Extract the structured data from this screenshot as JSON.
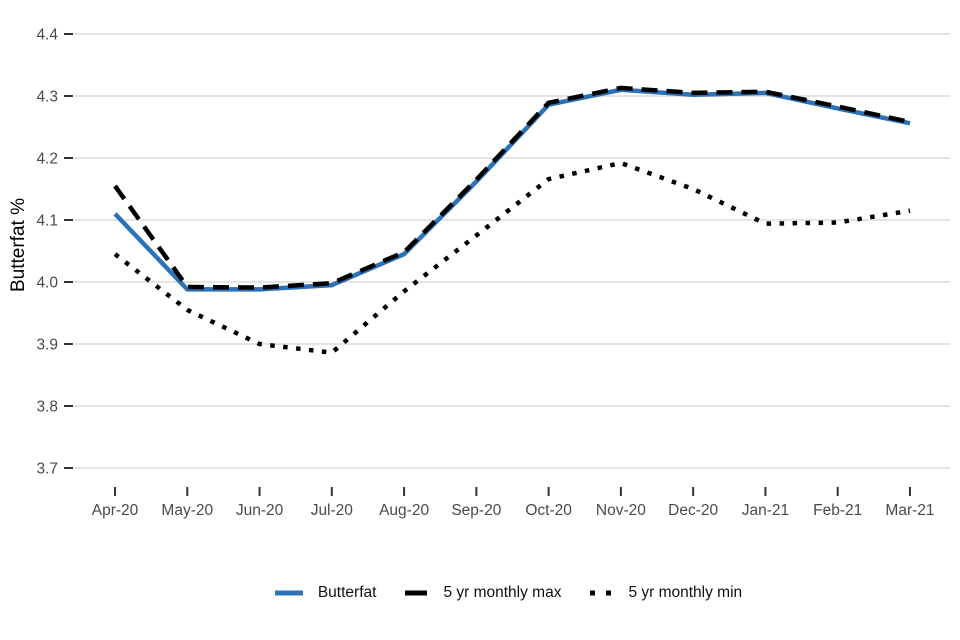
{
  "chart_data": {
    "type": "line",
    "title": "",
    "xlabel": "",
    "ylabel": "Butterfat %",
    "categories": [
      "Apr-20",
      "May-20",
      "Jun-20",
      "Jul-20",
      "Aug-20",
      "Sep-20",
      "Oct-20",
      "Nov-20",
      "Dec-20",
      "Jan-21",
      "Feb-21",
      "Mar-21"
    ],
    "yticks": [
      4.4,
      4.3,
      4.2,
      4.1,
      4.0,
      3.9,
      3.8,
      3.7
    ],
    "ytick_labels": [
      "4.4",
      "4.3",
      "4.2",
      "4.1",
      "4.0",
      "3.9",
      "3.8",
      "3.7"
    ],
    "ylim": [
      3.7,
      4.4
    ],
    "grid": "horizontal-only",
    "legend_position": "bottom-center",
    "series": [
      {
        "name": "Butterfat",
        "style": "solid",
        "color": "#2b72b8",
        "values": [
          4.11,
          3.988,
          3.988,
          3.995,
          4.045,
          4.162,
          4.286,
          4.31,
          4.302,
          4.305,
          4.28,
          4.256
        ]
      },
      {
        "name": "5 yr monthly max",
        "style": "dashed",
        "color": "#000000",
        "values": [
          4.155,
          3.992,
          3.991,
          3.998,
          4.048,
          4.165,
          4.289,
          4.313,
          4.305,
          4.307,
          4.283,
          4.258
        ]
      },
      {
        "name": "5 yr monthly min",
        "style": "dotted",
        "color": "#000000",
        "values": [
          4.045,
          3.955,
          3.9,
          3.886,
          3.985,
          4.075,
          4.166,
          4.192,
          4.15,
          4.094,
          4.096,
          4.115
        ]
      }
    ],
    "colors": {
      "butterfat_blue": "#2b72b8",
      "line_black": "#000000",
      "gridline": "#e4e4e4",
      "tick_mark": "#333333",
      "tick_label": "#4a4a4a",
      "background": "#ffffff"
    }
  }
}
